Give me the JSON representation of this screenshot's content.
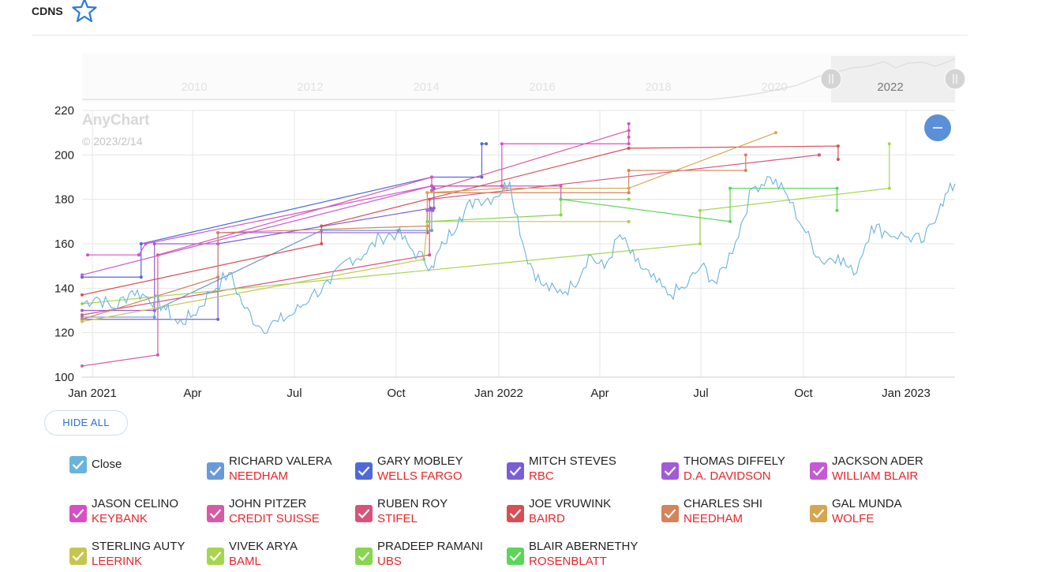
{
  "header": {
    "ticker": "CDNS"
  },
  "colors": {
    "close": "#69b3dc",
    "accent": "#2a6fd6"
  },
  "navigator": {
    "labels": [
      "2010",
      "2012",
      "2014",
      "2016",
      "2018",
      "2020",
      "2022"
    ]
  },
  "watermark": {
    "brand": "AnyChart",
    "date": "© 2023/2/14"
  },
  "controls": {
    "hide_all": "HIDE ALL"
  },
  "chart_data": {
    "type": "line",
    "ylim": [
      100,
      220
    ],
    "y_ticks": [
      100,
      120,
      140,
      160,
      180,
      200,
      220
    ],
    "x_ticks": [
      "Jan 2021",
      "Apr",
      "Jul",
      "Oct",
      "Jan 2022",
      "Apr",
      "Jul",
      "Oct",
      "Jan 2023"
    ],
    "xlim": [
      "2020-12-22",
      "2023-02-14"
    ],
    "close_series": {
      "name": "Close",
      "x": [
        "2020-12-22",
        "2021-01-04",
        "2021-01-20",
        "2021-02-05",
        "2021-02-19",
        "2021-03-05",
        "2021-03-18",
        "2021-04-01",
        "2021-04-16",
        "2021-05-03",
        "2021-05-17",
        "2021-06-01",
        "2021-06-16",
        "2021-07-01",
        "2021-07-16",
        "2021-08-02",
        "2021-08-17",
        "2021-09-01",
        "2021-09-16",
        "2021-10-01",
        "2021-10-15",
        "2021-11-01",
        "2021-11-12",
        "2021-11-26",
        "2021-12-10",
        "2021-12-27",
        "2022-01-10",
        "2022-01-24",
        "2022-02-07",
        "2022-02-22",
        "2022-03-08",
        "2022-03-22",
        "2022-04-05",
        "2022-04-19",
        "2022-05-03",
        "2022-05-17",
        "2022-06-01",
        "2022-06-16",
        "2022-07-01",
        "2022-07-15",
        "2022-08-01",
        "2022-08-16",
        "2022-09-01",
        "2022-09-16",
        "2022-10-03",
        "2022-10-17",
        "2022-11-01",
        "2022-11-15",
        "2022-12-01",
        "2022-12-15",
        "2023-01-03",
        "2023-01-17",
        "2023-02-01",
        "2023-02-14"
      ],
      "values": [
        133,
        136,
        131,
        139,
        136,
        132,
        124,
        128,
        138,
        147,
        131,
        122,
        125,
        129,
        137,
        142,
        153,
        155,
        163,
        165,
        157,
        150,
        160,
        172,
        180,
        181,
        188,
        156,
        142,
        138,
        141,
        155,
        149,
        164,
        152,
        145,
        137,
        140,
        150,
        142,
        161,
        185,
        190,
        182,
        165,
        152,
        155,
        146,
        168,
        165,
        163,
        161,
        178,
        187
      ]
    },
    "series": [
      {
        "name": "RICHARD VALERA",
        "firm": "NEEDHAM",
        "color": "#6a9ad6",
        "x": [
          "2020-12-22",
          "2021-02-25",
          "2021-02-25",
          "2021-07-25",
          "2021-10-02",
          "2021-11-01",
          "2021-11-01"
        ],
        "values": [
          127,
          127,
          130,
          166,
          166,
          166,
          175
        ]
      },
      {
        "name": "GARY MOBLEY",
        "firm": "WELLS FARGO",
        "color": "#4f6ad6",
        "x": [
          "2020-12-22",
          "2021-02-13",
          "2021-02-13",
          "2021-11-01",
          "2021-11-01",
          "2021-12-16",
          "2021-12-16",
          "2021-12-20"
        ],
        "values": [
          145,
          145,
          160,
          190,
          190,
          190,
          205,
          205
        ]
      },
      {
        "name": "MITCH STEVES",
        "firm": "RBC",
        "color": "#7a5ed6",
        "x": [
          "2020-12-22",
          "2021-04-23",
          "2021-04-23",
          "2021-10-31",
          "2021-10-31",
          "2021-11-03",
          "2021-11-03"
        ],
        "values": [
          126,
          126,
          160,
          176,
          176,
          176,
          185
        ]
      },
      {
        "name": "THOMAS DIFFELY",
        "firm": "D.A. DAVIDSON",
        "color": "#a35ad8",
        "x": [
          "2020-12-22",
          "2021-02-25",
          "2021-02-25",
          "2021-04-23",
          "2021-04-23",
          "2021-10-28",
          "2021-10-28",
          "2021-11-02"
        ],
        "values": [
          130,
          130,
          160,
          160,
          165,
          165,
          175,
          175
        ]
      },
      {
        "name": "JACKSON ADER",
        "firm": "WILLIAM BLAIR",
        "color": "#c65ad6",
        "x": [
          "2020-12-22",
          "2021-11-01",
          "2021-11-01",
          "2022-02-25",
          "2022-02-25"
        ],
        "values": [
          146,
          186,
          186,
          186,
          180
        ]
      },
      {
        "name": "JASON CELINO",
        "firm": "KEYBANK",
        "color": "#d64fc6",
        "x": [
          "2020-12-27",
          "2021-02-11",
          "2021-02-11",
          "2021-02-17",
          "2021-11-01",
          "2021-11-01",
          "2022-01-03",
          "2022-01-03",
          "2022-04-27",
          "2022-04-27"
        ],
        "values": [
          155,
          155,
          155,
          160,
          186,
          186,
          186,
          205,
          205,
          214
        ]
      },
      {
        "name": "JOHN PITZER",
        "firm": "CREDIT SUISSE",
        "color": "#d65aa6",
        "x": [
          "2020-12-22",
          "2021-02-28",
          "2021-02-28",
          "2021-11-01",
          "2021-11-01",
          "2022-04-27",
          "2022-04-27"
        ],
        "values": [
          105,
          110,
          155,
          190,
          184,
          211,
          208
        ]
      },
      {
        "name": "RUBEN ROY",
        "firm": "STIFEL",
        "color": "#d6537a",
        "x": [
          "2020-12-22",
          "2021-10-30",
          "2021-10-30",
          "2022-10-15",
          "2022-10-15"
        ],
        "values": [
          128,
          155,
          180,
          200,
          200
        ]
      },
      {
        "name": "JOE VRUWINK",
        "firm": "BAIRD",
        "color": "#d64f55",
        "x": [
          "2020-12-22",
          "2021-07-25",
          "2021-07-25",
          "2022-04-27",
          "2022-04-27",
          "2022-11-01",
          "2022-11-01"
        ],
        "values": [
          137,
          160,
          168,
          203,
          203,
          204,
          198
        ]
      },
      {
        "name": "CHARLES SHI",
        "firm": "NEEDHAM",
        "color": "#d6825a",
        "x": [
          "2020-12-22",
          "2021-04-23",
          "2021-04-23",
          "2021-10-28",
          "2021-10-28",
          "2022-04-27",
          "2022-04-27",
          "2022-08-10",
          "2022-08-10"
        ],
        "values": [
          126,
          145,
          165,
          168,
          183,
          183,
          193,
          193,
          200
        ]
      },
      {
        "name": "GAL MUNDA",
        "firm": "WOLFE",
        "color": "#d6a64f",
        "x": [
          "2021-10-28",
          "2022-01-05",
          "2022-04-27",
          "2022-09-06"
        ],
        "values": [
          183,
          185,
          185,
          210
        ]
      },
      {
        "name": "STERLING AUTY",
        "firm": "LEERINK",
        "color": "#c6c64f",
        "x": [
          "2020-12-22",
          "2021-10-25",
          "2021-10-28",
          "2022-04-27",
          "2022-04-27"
        ],
        "values": [
          125,
          153,
          170,
          170,
          170
        ]
      },
      {
        "name": "VIVEK ARYA",
        "firm": "BAML",
        "color": "#a6d64f",
        "x": [
          "2020-12-22",
          "2022-06-30",
          "2022-06-30",
          "2022-12-17",
          "2022-12-17"
        ],
        "values": [
          133,
          160,
          175,
          185,
          205
        ]
      },
      {
        "name": "PRADEEP RAMANI",
        "firm": "UBS",
        "color": "#86d64f",
        "x": [
          "2021-10-28",
          "2022-02-25",
          "2022-02-25",
          "2022-04-27",
          "2022-04-27"
        ],
        "values": [
          170,
          173,
          180,
          180,
          180
        ]
      },
      {
        "name": "BLAIR ABERNETHY",
        "firm": "ROSENBLATT",
        "color": "#5ad65a",
        "x": [
          "2022-02-25",
          "2022-07-27",
          "2022-07-27",
          "2022-10-31",
          "2022-10-31"
        ],
        "values": [
          180,
          170,
          185,
          185,
          175
        ]
      }
    ]
  }
}
